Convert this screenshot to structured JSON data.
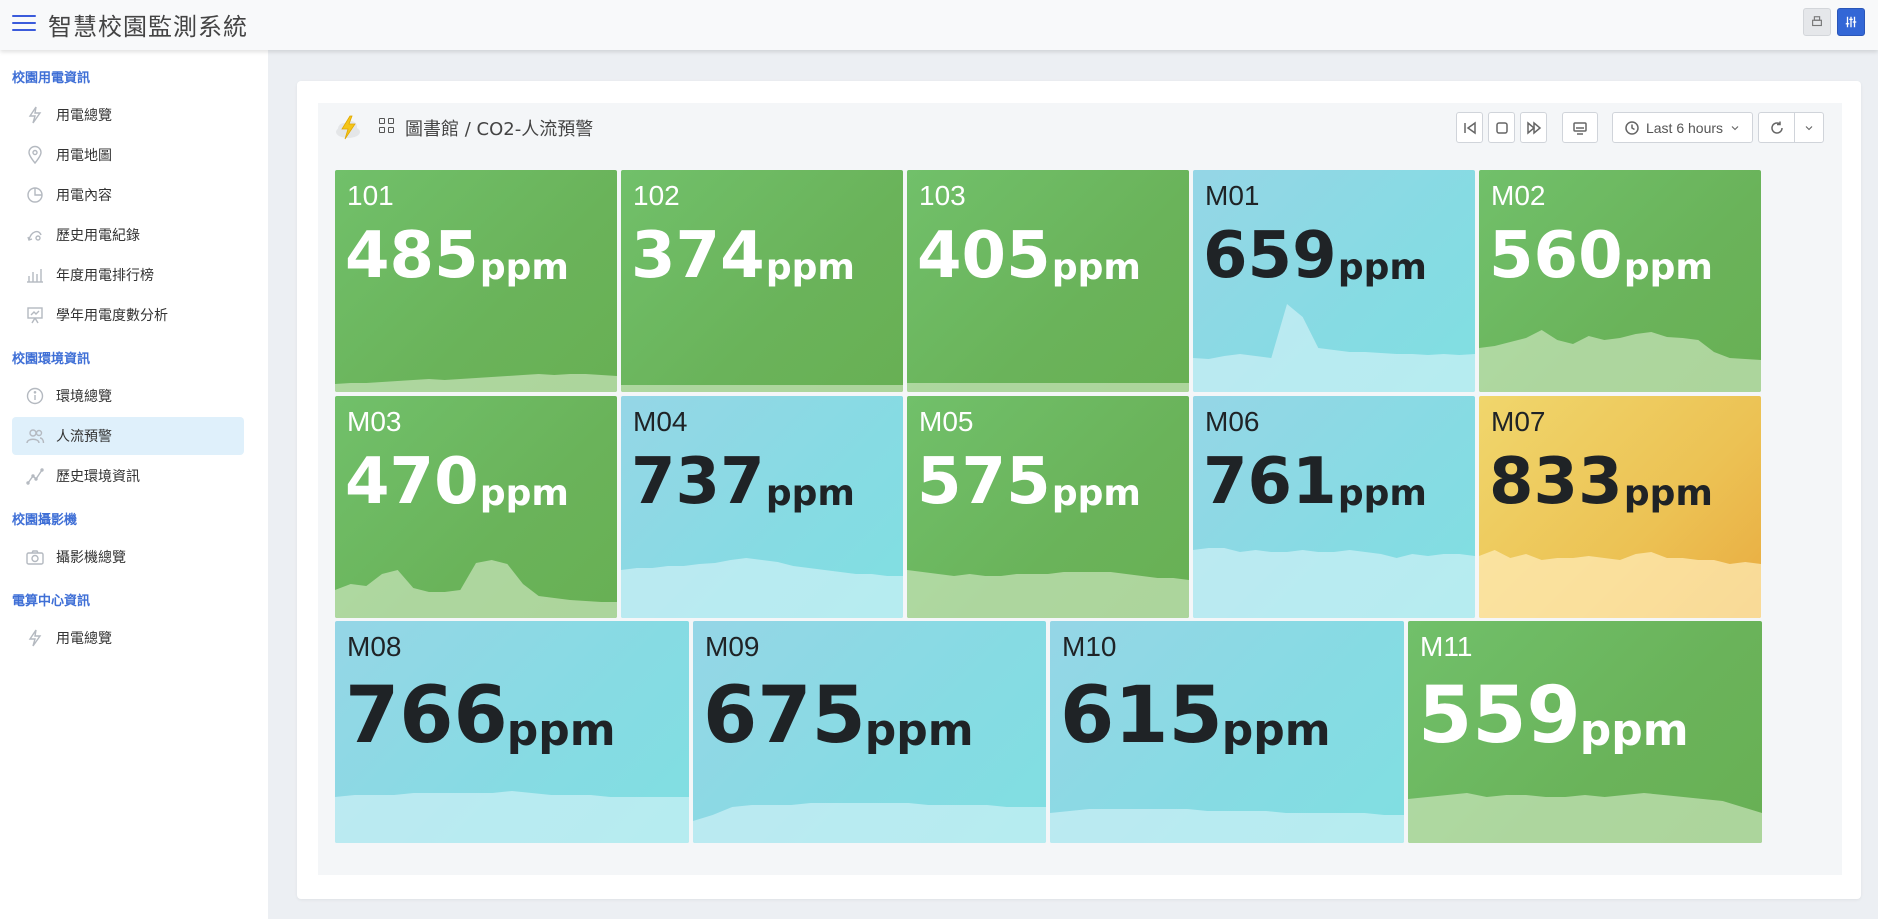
{
  "app": {
    "title": "智慧校園監測系統"
  },
  "sidebar": {
    "sections": [
      {
        "title": "校園用電資訊",
        "items": [
          {
            "label": "用電總覽",
            "icon": "bolt-icon"
          },
          {
            "label": "用電地圖",
            "icon": "map-pin-icon"
          },
          {
            "label": "用電內容",
            "icon": "pie-chart-icon"
          },
          {
            "label": "歷史用電紀錄",
            "icon": "history-icon"
          },
          {
            "label": "年度用電排行榜",
            "icon": "bar-chart-icon"
          },
          {
            "label": "學年用電度數分析",
            "icon": "presentation-icon"
          }
        ]
      },
      {
        "title": "校園環境資訊",
        "items": [
          {
            "label": "環境總覽",
            "icon": "info-icon"
          },
          {
            "label": "人流預警",
            "icon": "people-icon",
            "active": true
          },
          {
            "label": "歷史環境資訊",
            "icon": "trend-line-icon"
          }
        ]
      },
      {
        "title": "校園攝影機",
        "items": [
          {
            "label": "攝影機總覽",
            "icon": "camera-icon"
          }
        ]
      },
      {
        "title": "電算中心資訊",
        "items": [
          {
            "label": "用電總覽",
            "icon": "bolt-icon"
          }
        ]
      }
    ]
  },
  "dashboard": {
    "breadcrumb": "圖書館 / CO2-人流預警",
    "time_range": "Last 6 hours",
    "toolbar_icons": [
      "skip-back-icon",
      "stop-icon",
      "fast-forward-icon",
      "tv-icon",
      "clock-icon",
      "chevron-down-icon",
      "refresh-icon",
      "chevron-down-icon"
    ]
  },
  "tiles": [
    {
      "name": "101",
      "value": "485",
      "unit": "ppm",
      "status": "green",
      "spark": [
        8,
        9,
        9,
        10,
        11,
        12,
        13,
        12,
        13,
        14,
        15,
        16,
        17,
        18,
        17,
        18,
        18,
        17,
        16
      ]
    },
    {
      "name": "102",
      "value": "374",
      "unit": "ppm",
      "status": "green",
      "spark": [
        7,
        7,
        7,
        7,
        7,
        7,
        7,
        7,
        7,
        7,
        7,
        7,
        7,
        7,
        7,
        7,
        7,
        7,
        7
      ]
    },
    {
      "name": "103",
      "value": "405",
      "unit": "ppm",
      "status": "green",
      "spark": [
        9,
        9,
        9,
        9,
        9,
        9,
        9,
        9,
        9,
        9,
        9,
        9,
        9,
        9,
        9,
        9,
        9,
        9,
        9
      ]
    },
    {
      "name": "M01",
      "value": "659",
      "unit": "ppm",
      "status": "blue",
      "spark": [
        34,
        33,
        36,
        38,
        36,
        34,
        88,
        75,
        44,
        42,
        40,
        40,
        39,
        38,
        38,
        37,
        38,
        37,
        38
      ]
    },
    {
      "name": "M02",
      "value": "560",
      "unit": "ppm",
      "status": "green",
      "spark": [
        44,
        46,
        50,
        54,
        62,
        52,
        48,
        56,
        52,
        54,
        58,
        60,
        55,
        54,
        52,
        40,
        34,
        33,
        32
      ]
    },
    {
      "name": "M03",
      "value": "470",
      "unit": "ppm",
      "status": "green",
      "spark": [
        28,
        34,
        32,
        44,
        48,
        30,
        26,
        26,
        28,
        55,
        58,
        54,
        34,
        22,
        20,
        18,
        17,
        16,
        16
      ]
    },
    {
      "name": "M04",
      "value": "737",
      "unit": "ppm",
      "status": "blue",
      "spark": [
        48,
        50,
        50,
        52,
        52,
        54,
        55,
        58,
        60,
        58,
        56,
        52,
        50,
        48,
        46,
        44,
        44,
        42,
        42
      ]
    },
    {
      "name": "M05",
      "value": "575",
      "unit": "ppm",
      "status": "green",
      "spark": [
        48,
        46,
        44,
        42,
        44,
        42,
        42,
        44,
        44,
        44,
        46,
        46,
        46,
        46,
        44,
        42,
        40,
        40,
        38
      ]
    },
    {
      "name": "M06",
      "value": "761",
      "unit": "ppm",
      "status": "blue",
      "spark": [
        68,
        70,
        70,
        66,
        68,
        66,
        66,
        68,
        66,
        66,
        68,
        66,
        64,
        60,
        64,
        62,
        64,
        64,
        62
      ]
    },
    {
      "name": "M07",
      "value": "833",
      "unit": "ppm",
      "status": "orange",
      "spark": [
        62,
        68,
        60,
        64,
        58,
        60,
        60,
        62,
        60,
        58,
        64,
        66,
        60,
        60,
        58,
        58,
        54,
        56,
        54
      ]
    },
    {
      "name": "M08",
      "value": "766",
      "unit": "ppm",
      "status": "blue",
      "spark": [
        46,
        48,
        48,
        48,
        50,
        50,
        50,
        50,
        50,
        52,
        50,
        48,
        48,
        48,
        46,
        46,
        46,
        46,
        46
      ]
    },
    {
      "name": "M09",
      "value": "675",
      "unit": "ppm",
      "status": "blue",
      "spark": [
        22,
        28,
        36,
        38,
        38,
        38,
        40,
        40,
        40,
        40,
        40,
        40,
        38,
        38,
        38,
        38,
        36,
        36,
        36
      ]
    },
    {
      "name": "M10",
      "value": "615",
      "unit": "ppm",
      "status": "blue",
      "spark": [
        30,
        32,
        34,
        34,
        34,
        34,
        34,
        34,
        32,
        32,
        32,
        32,
        30,
        30,
        30,
        30,
        30,
        28,
        28
      ]
    },
    {
      "name": "M11",
      "value": "559",
      "unit": "ppm",
      "status": "green",
      "spark": [
        44,
        46,
        48,
        50,
        46,
        48,
        48,
        46,
        46,
        48,
        46,
        48,
        50,
        48,
        46,
        44,
        42,
        36,
        30
      ]
    }
  ]
}
